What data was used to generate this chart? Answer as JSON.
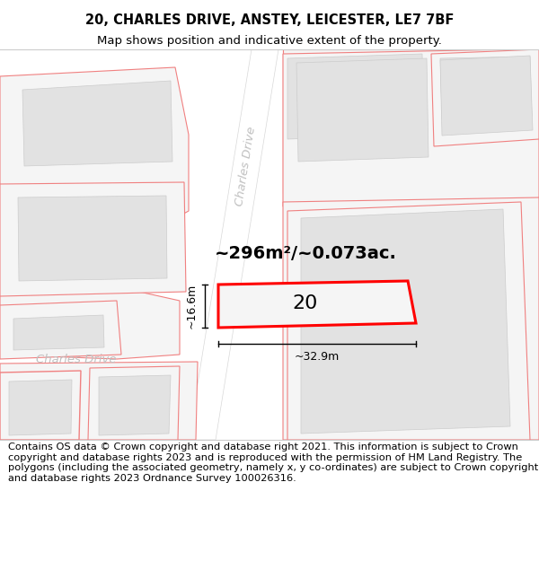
{
  "title_line1": "20, CHARLES DRIVE, ANSTEY, LEICESTER, LE7 7BF",
  "title_line2": "Map shows position and indicative extent of the property.",
  "footer_text": "Contains OS data © Crown copyright and database right 2021. This information is subject to Crown copyright and database rights 2023 and is reproduced with the permission of HM Land Registry. The polygons (including the associated geometry, namely x, y co-ordinates) are subject to Crown copyright and database rights 2023 Ordnance Survey 100026316.",
  "map_bg": "#f8f8f8",
  "fig_bg": "#ffffff",
  "road_fill": "#ffffff",
  "plot_outline": "#f08080",
  "building_fill": "#e2e2e2",
  "building_outline": "#cccccc",
  "highlight_fill": "#f0f0f0",
  "highlight_outline": "#ff0000",
  "street_label_color": "#b0b0b0",
  "measure_color": "#000000",
  "area_text": "~296m²/~0.073ac.",
  "number_label": "20",
  "width_label": "~32.9m",
  "height_label": "~16.6m",
  "title_fontsize": 10.5,
  "subtitle_fontsize": 9.5,
  "footer_fontsize": 8.2,
  "charles_drive_diagonal_label": "Charles Drive",
  "charles_drive_horiz_label": "Charles Drive"
}
